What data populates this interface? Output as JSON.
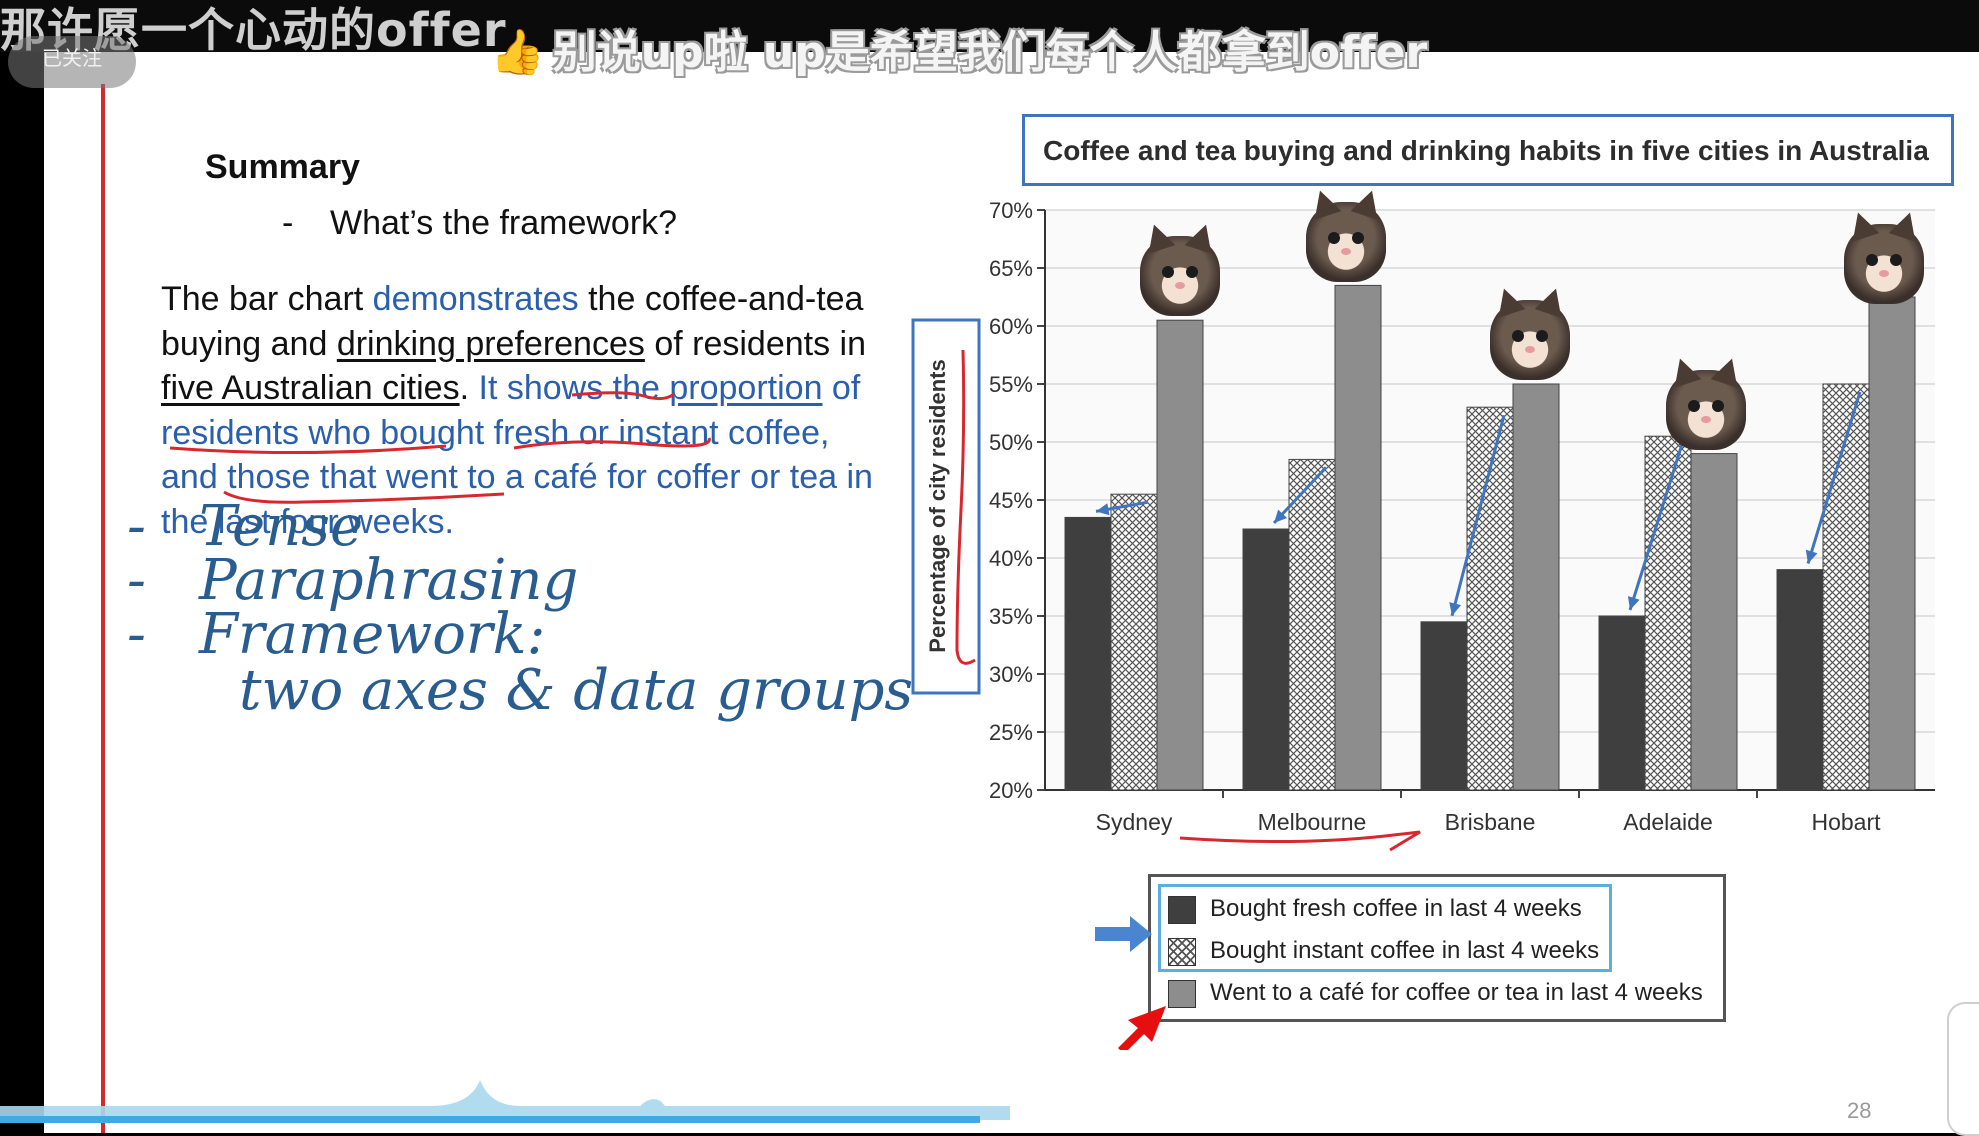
{
  "video": {
    "title": "那许愿一个心动的offer",
    "follow_label": "已关注",
    "danmaku": "别说up啦  up是希望我们每个人都拿到offer",
    "icons": [
      "thumbs-up-icon",
      "cat-sticker-icon",
      "pointer-arrow-icon"
    ]
  },
  "slide": {
    "summary_title": "Summary",
    "framework_dash": "-",
    "framework_question": "What’s the framework?",
    "paragraph": {
      "s1": "The bar chart ",
      "s2": "demonstrates",
      "s3": " the coffee-and-tea buying and ",
      "s4": "drinking preferences",
      "s5": " of residents in ",
      "s6": "five Australian cities",
      "s7": ". ",
      "s8": "It shows the ",
      "s9": "proportion",
      "s10": " of residents who bought fresh or instant coffee, and those that went to a café for coffer or tea in the last four weeks."
    },
    "handwritten": {
      "dash": "-",
      "item1": "Tense",
      "item2": "Paraphrasing",
      "item3": "Framework:",
      "item4": "two axes & data groups"
    },
    "page_number": "28"
  },
  "colors": {
    "fresh": "#3f3f3f",
    "cafe": "#8d8d8d",
    "text_blue": "#2a5fae",
    "annotation_red": "#d8282f",
    "annotation_blue": "#3f75bf"
  },
  "chart_data": {
    "type": "bar",
    "title": "Coffee and tea buying and drinking habits in five cities in Australia",
    "ylabel": "Percentage of city residents",
    "ylim": [
      20,
      70
    ],
    "yticks": [
      20,
      25,
      30,
      35,
      40,
      45,
      50,
      55,
      60,
      65,
      70
    ],
    "ytick_suffix": "%",
    "categories": [
      "Sydney",
      "Melbourne",
      "Brisbane",
      "Adelaide",
      "Hobart"
    ],
    "series": [
      {
        "name": "Bought fresh coffee in last 4 weeks",
        "values": [
          43.5,
          42.5,
          34.5,
          35,
          39
        ]
      },
      {
        "name": "Bought instant coffee in last 4 weeks",
        "values": [
          45.5,
          48.5,
          53,
          50.5,
          55
        ]
      },
      {
        "name": "Went to a café for coffee or tea in last 4 weeks",
        "values": [
          60.5,
          63.5,
          55,
          49,
          62.5
        ]
      }
    ],
    "grid": true,
    "legend_position": "bottom"
  }
}
